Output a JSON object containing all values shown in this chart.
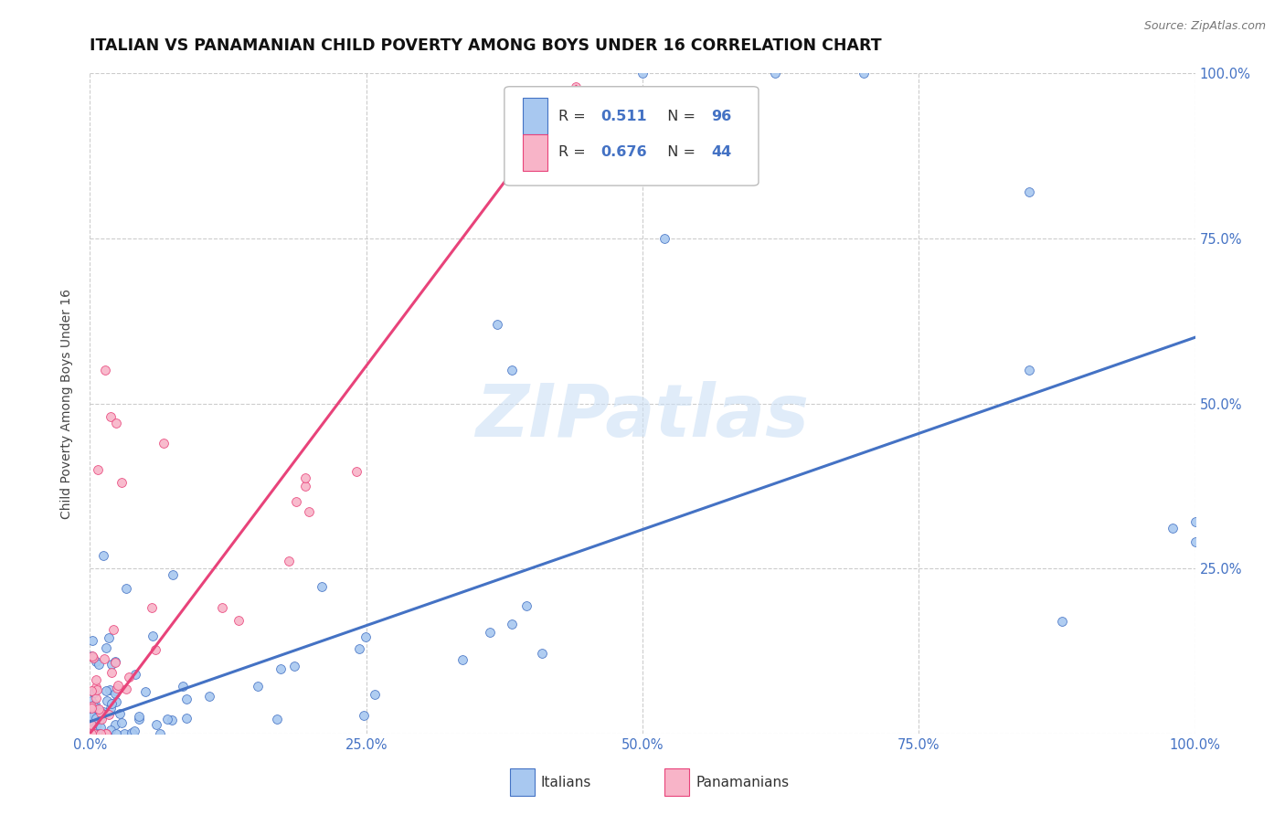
{
  "title": "ITALIAN VS PANAMANIAN CHILD POVERTY AMONG BOYS UNDER 16 CORRELATION CHART",
  "source": "Source: ZipAtlas.com",
  "ylabel": "Child Poverty Among Boys Under 16",
  "watermark": "ZIPatlas",
  "italian_R": 0.511,
  "italian_N": 96,
  "panamanian_R": 0.676,
  "panamanian_N": 44,
  "italian_color": "#a8c8f0",
  "panamanian_color": "#f8b4c8",
  "italian_line_color": "#4472c4",
  "panamanian_line_color": "#e8437a",
  "background_color": "#ffffff",
  "grid_color": "#cccccc",
  "title_fontsize": 12.5,
  "tick_label_color_blue": "#4472c4",
  "xlim": [
    0,
    1.0
  ],
  "ylim": [
    0,
    1.0
  ],
  "xticks": [
    0.0,
    0.25,
    0.5,
    0.75,
    1.0
  ],
  "yticks": [
    0.0,
    0.25,
    0.5,
    0.75,
    1.0
  ],
  "xticklabels": [
    "0.0%",
    "25.0%",
    "50.0%",
    "75.0%",
    "100.0%"
  ],
  "yticklabels": [
    "",
    "25.0%",
    "50.0%",
    "75.0%",
    "100.0%"
  ],
  "legend_label_italian": "Italians",
  "legend_label_panamanian": "Panamanians",
  "it_line_x0": 0.0,
  "it_line_y0": 0.018,
  "it_line_x1": 1.0,
  "it_line_y1": 0.6,
  "pan_line_x0": 0.0,
  "pan_line_y0": 0.0,
  "pan_line_x1": 0.44,
  "pan_line_y1": 0.98
}
